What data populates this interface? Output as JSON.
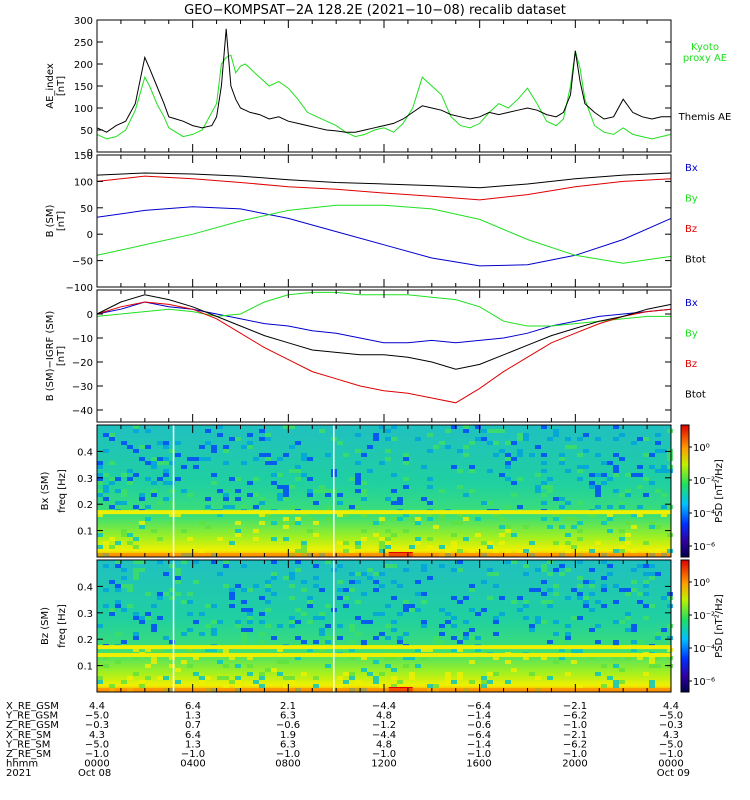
{
  "title": "GEO−KOMPSAT−2A 128.2E (2021−10−08) recalib dataset",
  "colors": {
    "black": "#000000",
    "red": "#e00000",
    "green": "#20e020",
    "blue": "#0000cc",
    "white": "#ffffff"
  },
  "chart_data": [
    {
      "type": "line",
      "ylabel": "AE_index",
      "yunit": "[nT]",
      "ylim": [
        0,
        300
      ],
      "yticks": [
        0,
        50,
        100,
        150,
        200,
        250,
        300
      ],
      "xlim": [
        0,
        24
      ],
      "x_unit": "hours UT",
      "legend": [
        {
          "text": "Kyoto",
          "color": "#20e020"
        },
        {
          "text": "proxy AE",
          "color": "#20e020"
        },
        {
          "text": "Themis AE",
          "color": "#000000"
        }
      ],
      "series": [
        {
          "name": "Kyoto proxy AE",
          "color": "#20e020",
          "x": [
            0,
            0.4,
            0.8,
            1.2,
            1.6,
            2.0,
            2.2,
            2.5,
            2.8,
            3.0,
            3.3,
            3.6,
            4.0,
            4.4,
            4.8,
            5.0,
            5.2,
            5.4,
            5.6,
            5.8,
            6.0,
            6.2,
            6.4,
            6.8,
            7.2,
            7.6,
            8.0,
            8.4,
            8.8,
            9.2,
            9.6,
            10.0,
            10.4,
            10.8,
            11.2,
            11.6,
            12.0,
            12.4,
            12.8,
            13.2,
            13.6,
            14.0,
            14.4,
            14.8,
            15.2,
            15.6,
            16.0,
            16.4,
            16.8,
            17.2,
            17.6,
            18.0,
            18.4,
            18.8,
            19.2,
            19.5,
            19.8,
            20.0,
            20.2,
            20.4,
            20.8,
            21.2,
            21.6,
            22.0,
            22.4,
            22.8,
            23.2,
            23.6,
            24.0
          ],
          "y": [
            40,
            30,
            35,
            50,
            95,
            170,
            150,
            110,
            80,
            55,
            45,
            35,
            40,
            50,
            90,
            110,
            200,
            215,
            220,
            180,
            195,
            200,
            190,
            170,
            150,
            160,
            145,
            120,
            90,
            80,
            70,
            60,
            45,
            35,
            40,
            50,
            55,
            45,
            65,
            100,
            170,
            150,
            130,
            80,
            60,
            55,
            65,
            90,
            110,
            100,
            120,
            145,
            110,
            70,
            60,
            75,
            150,
            230,
            190,
            120,
            60,
            45,
            40,
            55,
            40,
            35,
            30,
            35,
            40
          ]
        },
        {
          "name": "Themis AE",
          "color": "#000000",
          "x": [
            0,
            0.4,
            0.8,
            1.2,
            1.6,
            2.0,
            2.2,
            2.5,
            2.8,
            3.0,
            3.3,
            3.6,
            4.0,
            4.4,
            4.8,
            5.0,
            5.2,
            5.4,
            5.6,
            5.8,
            6.0,
            6.2,
            6.4,
            6.8,
            7.2,
            7.6,
            8.0,
            8.4,
            8.8,
            9.2,
            9.6,
            10.0,
            10.4,
            10.8,
            11.2,
            11.6,
            12.0,
            12.4,
            12.8,
            13.2,
            13.6,
            14.0,
            14.4,
            14.8,
            15.2,
            15.6,
            16.0,
            16.4,
            16.8,
            17.2,
            17.6,
            18.0,
            18.4,
            18.8,
            19.2,
            19.5,
            19.8,
            20.0,
            20.2,
            20.4,
            20.8,
            21.2,
            21.6,
            22.0,
            22.4,
            22.8,
            23.2,
            23.6,
            24.0
          ],
          "y": [
            55,
            45,
            60,
            70,
            110,
            215,
            190,
            150,
            110,
            80,
            75,
            70,
            60,
            55,
            60,
            80,
            150,
            280,
            150,
            120,
            100,
            95,
            90,
            85,
            75,
            80,
            70,
            65,
            60,
            55,
            50,
            48,
            45,
            45,
            50,
            55,
            60,
            65,
            75,
            90,
            105,
            100,
            95,
            85,
            80,
            75,
            80,
            90,
            85,
            90,
            95,
            100,
            95,
            85,
            80,
            90,
            130,
            230,
            160,
            110,
            90,
            75,
            80,
            120,
            90,
            80,
            75,
            80,
            80
          ]
        }
      ]
    },
    {
      "type": "line",
      "ylabel": "B (SM)",
      "yunit": "[nT]",
      "ylim": [
        -100,
        150
      ],
      "yticks": [
        -100,
        -50,
        0,
        50,
        100,
        150
      ],
      "xlim": [
        0,
        24
      ],
      "legend": [
        {
          "text": "Bx",
          "color": "#0000cc"
        },
        {
          "text": "By",
          "color": "#20e020"
        },
        {
          "text": "Bz",
          "color": "#e00000"
        },
        {
          "text": "Btot",
          "color": "#000000"
        }
      ],
      "series": [
        {
          "name": "Bx",
          "color": "#0000cc",
          "x": [
            0,
            2,
            4,
            6,
            8,
            10,
            12,
            14,
            16,
            18,
            20,
            22,
            24
          ],
          "y": [
            32,
            45,
            52,
            48,
            30,
            5,
            -20,
            -45,
            -60,
            -58,
            -40,
            -10,
            30
          ]
        },
        {
          "name": "By",
          "color": "#20e020",
          "x": [
            0,
            2,
            4,
            6,
            8,
            10,
            12,
            14,
            16,
            18,
            20,
            22,
            24
          ],
          "y": [
            -40,
            -20,
            0,
            25,
            45,
            55,
            55,
            48,
            28,
            -10,
            -40,
            -55,
            -42
          ]
        },
        {
          "name": "Bz",
          "color": "#e00000",
          "x": [
            0,
            2,
            4,
            6,
            8,
            10,
            12,
            14,
            16,
            18,
            20,
            22,
            24
          ],
          "y": [
            100,
            110,
            105,
            98,
            90,
            85,
            78,
            72,
            65,
            75,
            90,
            100,
            105
          ]
        },
        {
          "name": "Btot",
          "color": "#000000",
          "x": [
            0,
            2,
            4,
            6,
            8,
            10,
            12,
            14,
            16,
            18,
            20,
            22,
            24
          ],
          "y": [
            112,
            116,
            114,
            110,
            103,
            98,
            95,
            92,
            88,
            95,
            105,
            112,
            116
          ]
        }
      ]
    },
    {
      "type": "line",
      "ylabel": "B (SM)−IGRF (SM)",
      "yunit": "[nT]",
      "ylim": [
        -45,
        10
      ],
      "yticks": [
        -40,
        -30,
        -20,
        -10,
        0
      ],
      "xlim": [
        0,
        24
      ],
      "legend": [
        {
          "text": "Bx",
          "color": "#0000cc"
        },
        {
          "text": "By",
          "color": "#20e020"
        },
        {
          "text": "Bz",
          "color": "#e00000"
        },
        {
          "text": "Btot",
          "color": "#000000"
        }
      ],
      "series": [
        {
          "name": "Bx",
          "color": "#0000cc",
          "x": [
            0,
            1,
            2,
            3,
            4,
            5,
            6,
            7,
            8,
            9,
            10,
            11,
            12,
            13,
            14,
            15,
            16,
            17,
            18,
            19,
            20,
            21,
            22,
            23,
            24
          ],
          "y": [
            0,
            2,
            5,
            3,
            2,
            0,
            -2,
            -4,
            -5,
            -7,
            -8,
            -10,
            -12,
            -12,
            -11,
            -12,
            -11,
            -10,
            -8,
            -5,
            -3,
            -1,
            0,
            1,
            2
          ]
        },
        {
          "name": "By",
          "color": "#20e020",
          "x": [
            0,
            1,
            2,
            3,
            4,
            5,
            6,
            7,
            8,
            9,
            10,
            11,
            12,
            13,
            14,
            15,
            16,
            17,
            18,
            19,
            20,
            21,
            22,
            23,
            24
          ],
          "y": [
            -1,
            0,
            1,
            2,
            1,
            -1,
            0,
            5,
            8,
            9,
            9,
            8,
            8,
            8,
            7,
            6,
            3,
            -3,
            -5,
            -5,
            -4,
            -3,
            -2,
            -1,
            -1
          ]
        },
        {
          "name": "Bz",
          "color": "#e00000",
          "x": [
            0,
            1,
            2,
            3,
            4,
            5,
            6,
            7,
            8,
            9,
            10,
            11,
            12,
            13,
            14,
            15,
            16,
            17,
            18,
            19,
            20,
            21,
            22,
            23,
            24
          ],
          "y": [
            0,
            3,
            5,
            4,
            2,
            -2,
            -8,
            -14,
            -19,
            -24,
            -27,
            -30,
            -32,
            -33,
            -35,
            -37,
            -31,
            -24,
            -18,
            -12,
            -8,
            -4,
            -1,
            1,
            2
          ]
        },
        {
          "name": "Btot",
          "color": "#000000",
          "x": [
            0,
            1,
            2,
            3,
            4,
            5,
            6,
            7,
            8,
            9,
            10,
            11,
            12,
            13,
            14,
            15,
            16,
            17,
            18,
            19,
            20,
            21,
            22,
            23,
            24
          ],
          "y": [
            0,
            5,
            8,
            6,
            3,
            -1,
            -5,
            -9,
            -12,
            -15,
            -16,
            -17,
            -17,
            -18,
            -20,
            -23,
            -21,
            -17,
            -13,
            -9,
            -6,
            -3,
            -1,
            2,
            4
          ]
        }
      ]
    },
    {
      "type": "heatmap",
      "ylabel": "Bx (SM)",
      "yunit": "freq [Hz]",
      "ylim": [
        0,
        0.5
      ],
      "yticks": [
        0.1,
        0.2,
        0.3,
        0.4
      ],
      "xlim": [
        0,
        24
      ],
      "colorbar_label": "PSD [nT²/Hz]",
      "colorbar_ticks": [
        "10⁰",
        "10⁻²",
        "10⁻⁴",
        "10⁻⁶"
      ],
      "bands_hz": [
        0.17
      ],
      "description_colors": [
        "#000070",
        "#0020ff",
        "#00c0ff",
        "#20e080",
        "#80f000",
        "#f0f000",
        "#ff8000",
        "#e00000"
      ]
    },
    {
      "type": "heatmap",
      "ylabel": "Bz (SM)",
      "yunit": "freq [Hz]",
      "ylim": [
        0,
        0.5
      ],
      "yticks": [
        0.1,
        0.2,
        0.3,
        0.4
      ],
      "xlim": [
        0,
        24
      ],
      "colorbar_label": "PSD [nT²/Hz]",
      "colorbar_ticks": [
        "10⁰",
        "10⁻²",
        "10⁻⁴",
        "10⁻⁶"
      ],
      "bands_hz": [
        0.14,
        0.17
      ]
    }
  ],
  "ephemeris": {
    "rows": [
      {
        "label": "X_RE_GSM",
        "values": [
          "4.4",
          "6.4",
          "2.1",
          "−4.4",
          "−6.4",
          "−2.1",
          "4.4"
        ]
      },
      {
        "label": "Y_RE_GSM",
        "values": [
          "−5.0",
          "1.3",
          "6.3",
          "4.8",
          "−1.4",
          "−6.2",
          "−5.0"
        ]
      },
      {
        "label": "Z_RE_GSM",
        "values": [
          "−0.3",
          "0.7",
          "−0.6",
          "−1.2",
          "−0.6",
          "−1.0",
          "−0.3"
        ]
      },
      {
        "label": "X_RE_SM",
        "values": [
          "4.3",
          "6.4",
          "1.9",
          "−4.4",
          "−6.4",
          "−2.1",
          "4.3"
        ]
      },
      {
        "label": "Y_RE_SM",
        "values": [
          "−5.0",
          "1.3",
          "6.3",
          "4.8",
          "−1.4",
          "−6.2",
          "−5.0"
        ]
      },
      {
        "label": "Z_RE_SM",
        "values": [
          "−1.0",
          "−1.0",
          "−1.0",
          "−1.0",
          "−1.0",
          "−1.0",
          "−1.0"
        ]
      },
      {
        "label": "hhmm",
        "values": [
          "0000",
          "0400",
          "0800",
          "1200",
          "1600",
          "2000",
          "0000"
        ]
      },
      {
        "label": "2021",
        "values": [
          "Oct 08",
          "",
          "",
          "",
          "",
          "",
          "Oct 09"
        ]
      }
    ]
  }
}
